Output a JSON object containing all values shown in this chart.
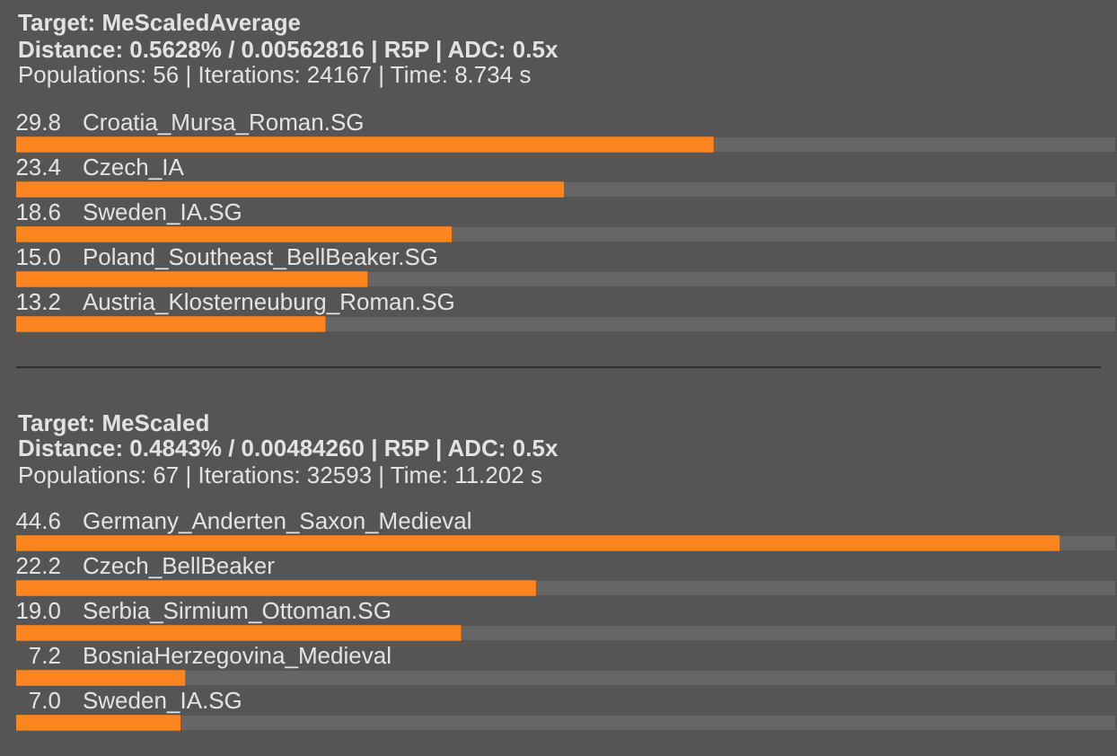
{
  "chart_data": [
    {
      "type": "bar",
      "orientation": "horizontal",
      "title": "Target: MeScaledAverage",
      "subtitle": "Distance: 0.5628% / 0.00562816 | R5P | ADC: 0.5x",
      "annotations": [
        "Populations: 56 | Iterations: 24167 | Time: 8.734 s"
      ],
      "categories": [
        "Croatia_Mursa_Roman.SG",
        "Czech_IA",
        "Sweden_IA.SG",
        "Poland_Southeast_BellBeaker.SG",
        "Austria_Klosterneuburg_Roman.SG"
      ],
      "values": [
        29.8,
        23.4,
        18.6,
        15.0,
        13.2
      ],
      "value_labels": [
        "29.8",
        "23.4",
        "18.6",
        "15.0",
        "13.2"
      ],
      "color": "#fd8520",
      "xlim": [
        0,
        47
      ],
      "tick_labels": false
    },
    {
      "type": "bar",
      "orientation": "horizontal",
      "title": "Target: MeScaled",
      "subtitle": "Distance: 0.4843% / 0.00484260 | R5P | ADC: 0.5x",
      "annotations": [
        "Populations: 67 | Iterations: 32593 | Time: 11.202 s"
      ],
      "categories": [
        "Germany_Anderten_Saxon_Medieval",
        "Czech_BellBeaker",
        "Serbia_Sirmium_Ottoman.SG",
        "BosniaHerzegovina_Medieval",
        "Sweden_IA.SG"
      ],
      "values": [
        44.6,
        22.2,
        19.0,
        7.2,
        7.0
      ],
      "value_labels": [
        "44.6",
        "22.2",
        "19.0",
        "7.2",
        "7.0"
      ],
      "color": "#fd8520",
      "xlim": [
        0,
        47
      ],
      "tick_labels": false
    }
  ]
}
